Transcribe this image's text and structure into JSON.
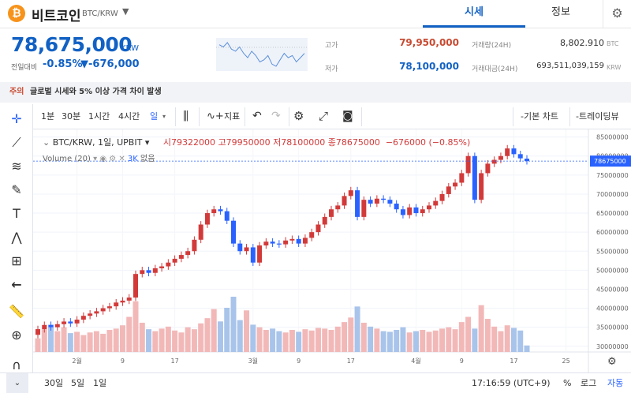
{
  "header": {
    "coin_symbol_icon": "bitcoin-icon",
    "coin_glyph": "₿",
    "coin_name": "비트코인",
    "pair": "BTC/KRW",
    "tabs": [
      "시세",
      "정보"
    ],
    "settings_icon": "gear-icon"
  },
  "summary": {
    "price": "78,675,000",
    "unit": "KRW",
    "change_label": "전일대비",
    "change_pct": "-0.85%",
    "change_amt": "▼-676,000",
    "high_label": "고가",
    "high_value": "79,950,000",
    "low_label": "저가",
    "low_value": "78,100,000",
    "volume_label": "거래량(24H)",
    "volume_value": "8,802.910",
    "volume_unit": "BTC",
    "value_label": "거래대금(24H)",
    "value_value": "693,511,039,159",
    "value_unit": "KRW"
  },
  "notice": {
    "tag": "주의",
    "text": "글로벌 시세와 5% 이상 가격 차이 발생"
  },
  "toolbar": {
    "intervals": [
      "1분",
      "30분",
      "1시간",
      "4시간",
      "일"
    ],
    "indicator": "지표",
    "basic_chart": "-기본 차트",
    "trading_view": "-트레이딩뷰"
  },
  "legend": {
    "symbol": "BTC/KRW, 1일, UPBIT",
    "open_label": "시",
    "open": "79322000",
    "high_label": "고",
    "high": "79950000",
    "low_label": "저",
    "low": "78100000",
    "close_label": "종",
    "close": "78675000",
    "change": "−676000 (−0.85%)",
    "volume_label": "Volume (20)",
    "volume_value": "3K",
    "volume_extra": "없음"
  },
  "bottom": {
    "ranges": [
      "30일",
      "5일",
      "1일"
    ],
    "time": "17:16:59 (UTC+9)",
    "percent": "%",
    "log": "로그",
    "auto": "자동"
  },
  "chart_data": {
    "type": "candlestick",
    "x_ticks": [
      "2월",
      "9",
      "17",
      "3월",
      "9",
      "17",
      "4월",
      "9",
      "17",
      "25"
    ],
    "y_ticks": [
      "85000000",
      "80000000",
      "75000000",
      "70000000",
      "65000000",
      "60000000",
      "55000000",
      "50000000",
      "45000000",
      "40000000",
      "35000000",
      "30000000"
    ],
    "ylim": [
      28500000,
      87000000
    ],
    "last_price_label": "78675000",
    "up_color": "#d23a3a",
    "down_color": "#2962ff",
    "up_volume_color": "#f2b8b8",
    "down_volume_color": "#a9c4ea",
    "closes": [
      34500000,
      35600000,
      35000000,
      35800000,
      36500000,
      36000000,
      37000000,
      38000000,
      38600000,
      39200000,
      40000000,
      40500000,
      41500000,
      42000000,
      42800000,
      49000000,
      50000000,
      49300000,
      50500000,
      51000000,
      52000000,
      53000000,
      54000000,
      55000000,
      58000000,
      62000000,
      65000000,
      66000000,
      65500000,
      63000000,
      57000000,
      55000000,
      56000000,
      52000000,
      56500000,
      57500000,
      57000000,
      56800000,
      57800000,
      58200000,
      57000000,
      58500000,
      60000000,
      62000000,
      64000000,
      66000000,
      67000000,
      69500000,
      71000000,
      64000000,
      68500000,
      67500000,
      68800000,
      68500000,
      67500000,
      66000000,
      64500000,
      66500000,
      65000000,
      66000000,
      67000000,
      68200000,
      70000000,
      72000000,
      73000000,
      75500000,
      80000000,
      68500000,
      75500000,
      78000000,
      79000000,
      80000000,
      82000000,
      80500000,
      79400000,
      78675000
    ],
    "opens": [
      33000000,
      34500000,
      35600000,
      35000000,
      35800000,
      36500000,
      36000000,
      37000000,
      38000000,
      38600000,
      39200000,
      40000000,
      40500000,
      41500000,
      42000000,
      42800000,
      49000000,
      50000000,
      49300000,
      50500000,
      51000000,
      52000000,
      53000000,
      54000000,
      55000000,
      58000000,
      62000000,
      65000000,
      66000000,
      65500000,
      63000000,
      57000000,
      55000000,
      56000000,
      52000000,
      56500000,
      57500000,
      57000000,
      56800000,
      57800000,
      58200000,
      57000000,
      58500000,
      60000000,
      62000000,
      64000000,
      66000000,
      67000000,
      69500000,
      71000000,
      64000000,
      68500000,
      67500000,
      68800000,
      68500000,
      67500000,
      66000000,
      64500000,
      66500000,
      65000000,
      66000000,
      67000000,
      68200000,
      70000000,
      72000000,
      73000000,
      75500000,
      80000000,
      68500000,
      75500000,
      78000000,
      79000000,
      80000000,
      82000000,
      80500000,
      79322000
    ],
    "volumes": [
      2.1,
      3.5,
      4.2,
      3.2,
      3.8,
      2.9,
      3.1,
      2.6,
      3.0,
      3.2,
      2.8,
      3.4,
      3.6,
      4.1,
      5.4,
      7.8,
      4.5,
      3.5,
      3.2,
      3.6,
      3.9,
      3.3,
      3.0,
      3.8,
      3.5,
      4.4,
      5.2,
      6.6,
      4.7,
      6.8,
      8.5,
      4.9,
      6.4,
      4.2,
      3.8,
      3.4,
      3.6,
      3.2,
      3.0,
      3.4,
      3.1,
      3.5,
      3.3,
      3.7,
      3.6,
      3.4,
      3.9,
      4.6,
      5.3,
      7.0,
      4.5,
      3.9,
      3.6,
      3.2,
      3.1,
      3.4,
      3.8,
      3.0,
      3.2,
      3.4,
      3.1,
      3.3,
      3.6,
      3.8,
      3.5,
      4.6,
      5.4,
      3.6,
      7.2,
      5.1,
      3.9,
      3.2,
      4.1,
      3.7,
      3.3,
      1.0
    ]
  },
  "mini_chart": {
    "values": [
      72,
      71,
      73,
      70,
      69,
      71,
      68,
      66,
      69,
      67,
      64,
      65,
      67,
      63,
      62,
      65,
      68,
      66,
      67,
      64,
      66,
      68
    ]
  }
}
